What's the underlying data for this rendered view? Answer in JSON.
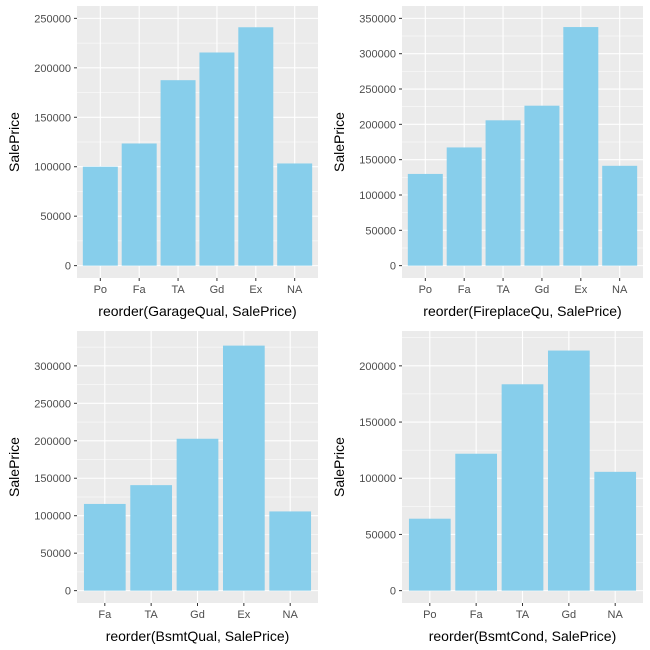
{
  "colors": {
    "panel_background": "#ebebeb",
    "grid_major": "#ffffff",
    "bar_fill": "#87ceeb"
  },
  "chart_data": [
    {
      "type": "bar",
      "xlabel": "reorder(GarageQual, SalePrice)",
      "ylabel": "SalePrice",
      "categories": [
        "Po",
        "Fa",
        "TA",
        "Gd",
        "Ex",
        "NA"
      ],
      "values": [
        100000,
        123500,
        187500,
        215500,
        241000,
        103300
      ],
      "yticks": [
        0,
        50000,
        100000,
        150000,
        200000,
        250000
      ],
      "ylim": [
        0,
        250000
      ]
    },
    {
      "type": "bar",
      "xlabel": "reorder(FireplaceQu, SalePrice)",
      "ylabel": "SalePrice",
      "categories": [
        "Po",
        "Fa",
        "TA",
        "Gd",
        "Ex",
        "NA"
      ],
      "values": [
        129800,
        167300,
        205700,
        226400,
        337700,
        141300
      ],
      "yticks": [
        0,
        50000,
        100000,
        150000,
        200000,
        250000,
        300000,
        350000
      ],
      "ylim": [
        0,
        350000
      ]
    },
    {
      "type": "bar",
      "xlabel": "reorder(BsmtQual, SalePrice)",
      "ylabel": "SalePrice",
      "categories": [
        "Fa",
        "TA",
        "Gd",
        "Ex",
        "NA"
      ],
      "values": [
        115700,
        140800,
        202700,
        327000,
        105700
      ],
      "yticks": [
        0,
        50000,
        100000,
        150000,
        200000,
        250000,
        300000
      ],
      "ylim": [
        0,
        330000
      ]
    },
    {
      "type": "bar",
      "xlabel": "reorder(BsmtCond, SalePrice)",
      "ylabel": "SalePrice",
      "categories": [
        "Po",
        "Fa",
        "TA",
        "Gd",
        "NA"
      ],
      "values": [
        64000,
        121800,
        183600,
        213600,
        105700
      ],
      "yticks": [
        0,
        50000,
        100000,
        150000,
        200000
      ],
      "ylim": [
        0,
        220000
      ]
    }
  ]
}
